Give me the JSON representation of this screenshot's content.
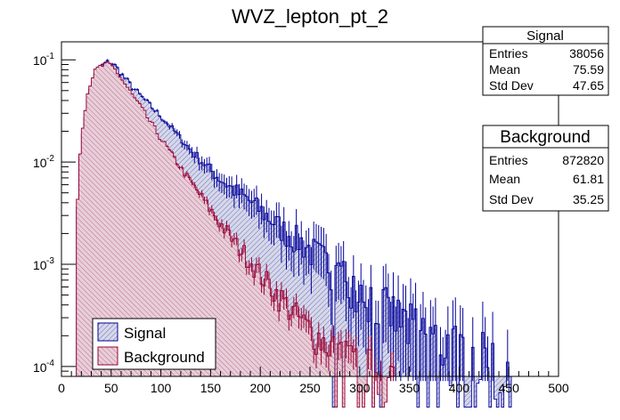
{
  "chart_data": {
    "type": "histogram",
    "title": "WVZ_lepton_pt_2",
    "xlabel": "",
    "ylabel": "",
    "xlim": [
      0,
      500
    ],
    "ylim": [
      8e-05,
      0.15
    ],
    "yscale": "log",
    "x_ticks": [
      0,
      50,
      100,
      150,
      200,
      250,
      300,
      350,
      400,
      450,
      500
    ],
    "y_ticks": [
      {
        "base": "10",
        "exp": "-4",
        "value": 0.0001
      },
      {
        "base": "10",
        "exp": "-3",
        "value": 0.001
      },
      {
        "base": "10",
        "exp": "-2",
        "value": 0.01
      },
      {
        "base": "10",
        "exp": "-1",
        "value": 0.1
      }
    ],
    "bin_width": 2.5,
    "legend_position": "bottom-left",
    "series": [
      {
        "name": "Signal",
        "color": "#000099",
        "fill": "#d6d8e8",
        "knots_x": [
          15,
          17.5,
          20,
          25,
          30,
          35,
          40,
          45,
          50,
          55,
          60,
          70,
          80,
          90,
          100,
          110,
          120,
          130,
          140,
          150,
          160,
          175,
          190,
          200,
          210,
          225,
          240,
          250,
          260,
          275,
          290,
          300,
          310,
          325,
          340,
          350,
          375,
          400,
          425,
          450
        ],
        "knots_y": [
          0.0022,
          0.007,
          0.016,
          0.035,
          0.058,
          0.075,
          0.086,
          0.094,
          0.095,
          0.085,
          0.073,
          0.056,
          0.044,
          0.035,
          0.028,
          0.022,
          0.017,
          0.013,
          0.0105,
          0.0083,
          0.0068,
          0.0052,
          0.0041,
          0.0034,
          0.0028,
          0.0021,
          0.0017,
          0.0014,
          0.0012,
          0.0009,
          0.00072,
          0.0006,
          0.0005,
          0.00039,
          0.0003,
          0.00026,
          0.00019,
          0.00015,
          0.00012,
          0.0001
        ],
        "last_bin_start": 450,
        "stats": {
          "label": "Signal",
          "entries": "38056",
          "mean": "75.59",
          "std_dev": "47.65"
        }
      },
      {
        "name": "Background",
        "color": "#990033",
        "fill": "#e7cfd9",
        "knots_x": [
          15,
          17.5,
          20,
          25,
          30,
          35,
          40,
          45,
          50,
          55,
          60,
          70,
          80,
          90,
          100,
          110,
          120,
          130,
          140,
          150,
          160,
          175,
          190,
          200,
          210,
          225,
          240,
          250,
          260,
          275,
          290,
          300,
          310,
          320,
          330
        ],
        "knots_y": [
          0.0024,
          0.008,
          0.019,
          0.042,
          0.066,
          0.08,
          0.087,
          0.089,
          0.088,
          0.078,
          0.066,
          0.047,
          0.034,
          0.024,
          0.017,
          0.0122,
          0.0088,
          0.0064,
          0.0047,
          0.0034,
          0.0025,
          0.0016,
          0.0011,
          0.0008,
          0.00062,
          0.00042,
          0.00029,
          0.00023,
          0.00019,
          0.00015,
          0.00012,
          0.000105,
          0.0001,
          8.5e-05,
          8e-05
        ],
        "last_bin_start": 332.5,
        "stats": {
          "label": "Background",
          "entries": "872820",
          "mean": "61.81",
          "std_dev": "35.25"
        }
      }
    ]
  },
  "stats_labels": {
    "entries": "Entries",
    "mean": "Mean",
    "std_dev": "Std Dev"
  }
}
